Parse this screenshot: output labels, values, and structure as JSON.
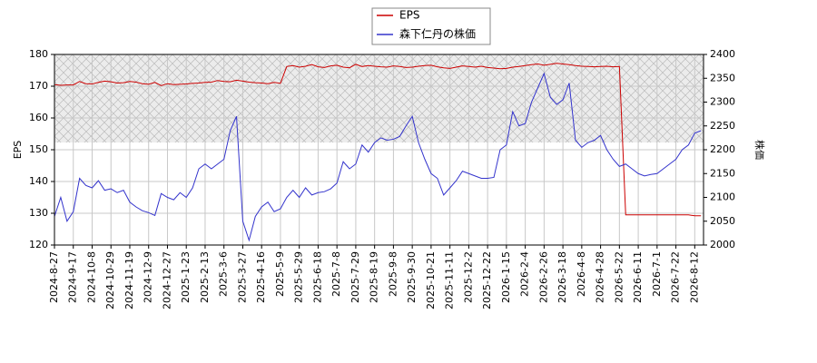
{
  "chart_data": {
    "type": "line",
    "y_label": "EPS",
    "y2_label": "株価",
    "xlim": [
      0,
      517
    ],
    "xticks": [
      {
        "value": 0,
        "label": "2024-8-27"
      },
      {
        "value": 15,
        "label": "2024-9-17"
      },
      {
        "value": 30,
        "label": "2024-10-8"
      },
      {
        "value": 45,
        "label": "2024-10-29"
      },
      {
        "value": 60,
        "label": "2024-11-19"
      },
      {
        "value": 75,
        "label": "2024-12-9"
      },
      {
        "value": 90,
        "label": "2024-12-27"
      },
      {
        "value": 105,
        "label": "2025-1-23"
      },
      {
        "value": 120,
        "label": "2025-2-13"
      },
      {
        "value": 135,
        "label": "2025-3-6"
      },
      {
        "value": 150,
        "label": "2025-3-27"
      },
      {
        "value": 165,
        "label": "2025-4-16"
      },
      {
        "value": 180,
        "label": "2025-5-9"
      },
      {
        "value": 195,
        "label": "2025-5-29"
      },
      {
        "value": 210,
        "label": "2025-6-18"
      },
      {
        "value": 225,
        "label": "2025-7-8"
      },
      {
        "value": 240,
        "label": "2025-7-29"
      },
      {
        "value": 255,
        "label": "2025-8-19"
      },
      {
        "value": 270,
        "label": "2025-9-8"
      },
      {
        "value": 285,
        "label": "2025-9-30"
      },
      {
        "value": 300,
        "label": "2025-10-21"
      },
      {
        "value": 315,
        "label": "2025-11-11"
      },
      {
        "value": 330,
        "label": "2025-12-2"
      },
      {
        "value": 345,
        "label": "2025-12-22"
      },
      {
        "value": 360,
        "label": "2026-1-15"
      },
      {
        "value": 375,
        "label": "2026-2-4"
      },
      {
        "value": 390,
        "label": "2026-2-26"
      },
      {
        "value": 405,
        "label": "2026-3-18"
      },
      {
        "value": 420,
        "label": "2026-4-8"
      },
      {
        "value": 435,
        "label": "2026-4-28"
      },
      {
        "value": 450,
        "label": "2026-5-22"
      },
      {
        "value": 465,
        "label": "2026-6-11"
      },
      {
        "value": 480,
        "label": "2026-7-1"
      },
      {
        "value": 495,
        "label": "2026-7-22"
      },
      {
        "value": 510,
        "label": "2026-8-12"
      }
    ],
    "ylim": [
      120,
      180
    ],
    "yticks": [
      120,
      130,
      140,
      150,
      160,
      170,
      180
    ],
    "y2lim": [
      2000,
      2400
    ],
    "y2ticks": [
      2000,
      2050,
      2100,
      2150,
      2200,
      2250,
      2300,
      2350,
      2400
    ],
    "grid": true,
    "x": [
      0,
      5,
      10,
      15,
      20,
      25,
      30,
      35,
      40,
      45,
      50,
      55,
      60,
      65,
      70,
      75,
      80,
      85,
      90,
      95,
      100,
      105,
      110,
      115,
      120,
      125,
      130,
      135,
      140,
      145,
      150,
      155,
      160,
      165,
      170,
      175,
      180,
      185,
      190,
      195,
      200,
      205,
      210,
      215,
      220,
      225,
      230,
      235,
      240,
      245,
      250,
      255,
      260,
      265,
      270,
      275,
      280,
      285,
      290,
      295,
      300,
      305,
      310,
      315,
      320,
      325,
      330,
      335,
      340,
      345,
      350,
      355,
      360,
      365,
      370,
      375,
      380,
      385,
      390,
      395,
      400,
      405,
      410,
      415,
      420,
      425,
      430,
      435,
      440,
      445,
      450,
      455,
      460,
      465,
      470,
      475,
      480,
      485,
      490,
      495,
      500,
      505,
      510,
      515
    ],
    "series": [
      {
        "name": "EPS",
        "color": "#cc0000",
        "axis": "y",
        "values": [
          170.5,
          170.3,
          170.4,
          170.4,
          171.5,
          170.8,
          170.7,
          171.2,
          171.6,
          171.4,
          171.0,
          171.1,
          171.5,
          171.3,
          170.8,
          170.6,
          171.2,
          170.2,
          170.8,
          170.5,
          170.6,
          170.7,
          170.9,
          171.0,
          171.2,
          171.3,
          171.8,
          171.5,
          171.4,
          171.9,
          171.6,
          171.3,
          171.1,
          171.0,
          170.8,
          171.2,
          170.9,
          176.2,
          176.5,
          176.0,
          176.3,
          176.8,
          176.1,
          175.9,
          176.4,
          176.6,
          176.0,
          175.8,
          176.9,
          176.2,
          176.5,
          176.3,
          176.1,
          176.0,
          176.4,
          176.2,
          175.9,
          176.0,
          176.3,
          176.5,
          176.6,
          176.1,
          175.8,
          175.6,
          176.0,
          176.4,
          176.2,
          176.0,
          176.3,
          175.9,
          175.7,
          175.5,
          175.6,
          176.0,
          176.2,
          176.5,
          176.8,
          177.0,
          176.6,
          176.9,
          177.2,
          177.0,
          176.8,
          176.5,
          176.3,
          176.2,
          176.1,
          176.2,
          176.3,
          176.1,
          176.2,
          129.5,
          129.5,
          129.5,
          129.5,
          129.5,
          129.5,
          129.5,
          129.5,
          129.5,
          129.5,
          129.5,
          129.2,
          129.2
        ]
      },
      {
        "name": "森下仁丹の株価",
        "color": "#3333cc",
        "axis": "y2",
        "values": [
          2060,
          2100,
          2050,
          2070,
          2140,
          2125,
          2120,
          2135,
          2115,
          2118,
          2110,
          2115,
          2090,
          2080,
          2072,
          2068,
          2062,
          2108,
          2100,
          2095,
          2110,
          2100,
          2120,
          2160,
          2170,
          2160,
          2170,
          2180,
          2240,
          2270,
          2050,
          2010,
          2060,
          2080,
          2090,
          2070,
          2076,
          2100,
          2115,
          2100,
          2120,
          2105,
          2110,
          2112,
          2118,
          2130,
          2175,
          2160,
          2170,
          2210,
          2195,
          2215,
          2225,
          2220,
          2222,
          2228,
          2250,
          2270,
          2215,
          2180,
          2150,
          2140,
          2105,
          2120,
          2135,
          2155,
          2150,
          2145,
          2140,
          2140,
          2142,
          2200,
          2210,
          2280,
          2250,
          2255,
          2300,
          2330,
          2360,
          2310,
          2295,
          2305,
          2340,
          2220,
          2205,
          2215,
          2220,
          2230,
          2200,
          2180,
          2165,
          2170,
          2160,
          2150,
          2145,
          2148,
          2150,
          2160,
          2170,
          2180,
          2200,
          2210,
          2235,
          2240
        ]
      }
    ]
  }
}
